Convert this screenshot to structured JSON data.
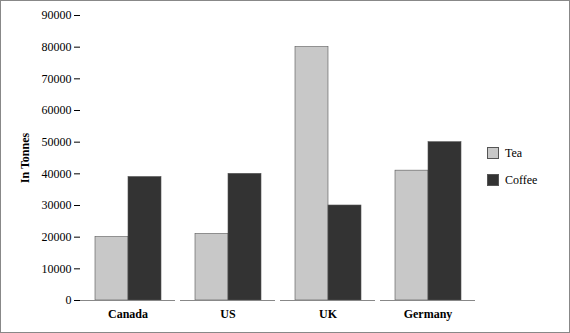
{
  "chart_data": {
    "type": "bar",
    "y_label": "In Tonnes",
    "categories": [
      "Canada",
      "US",
      "UK",
      "Germany"
    ],
    "series": [
      {
        "name": "Tea",
        "color": "#c8c8c8",
        "values": [
          20000,
          21000,
          80000,
          41000
        ]
      },
      {
        "name": "Coffee",
        "color": "#333333",
        "values": [
          39000,
          40000,
          30000,
          50000
        ]
      }
    ],
    "ylim": [
      0,
      90000
    ],
    "yticks": [
      0,
      10000,
      20000,
      30000,
      40000,
      50000,
      60000,
      70000,
      80000,
      90000
    ],
    "grid": false,
    "legend": "right"
  }
}
